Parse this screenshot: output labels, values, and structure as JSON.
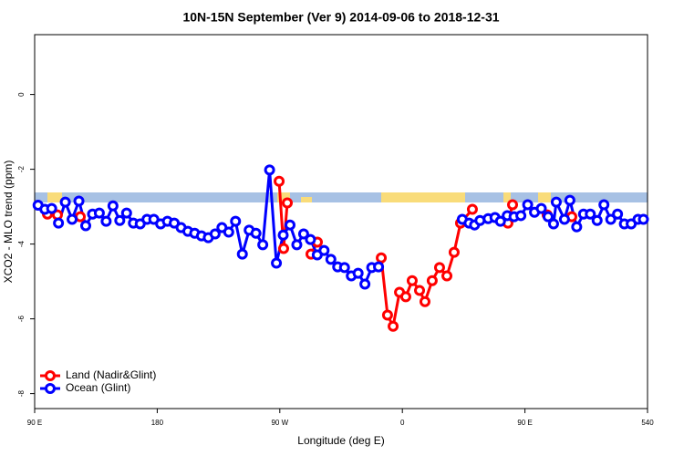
{
  "chart_data": {
    "type": "line",
    "title": "10N-15N September (Ver 9)   2014-09-06 to 2018-12-31",
    "x_label": "Longitude (deg E)",
    "y_label": "XCO2 - MLO trend (ppm)",
    "xlim": [
      90,
      540
    ],
    "ylim": [
      -8.4,
      1.6
    ],
    "xticks": [
      {
        "value": 90,
        "label": "90 E"
      },
      180,
      {
        "value": 270,
        "label": "90 W"
      },
      {
        "value": 360,
        "label": "0"
      },
      {
        "value": 450,
        "label": "90 E"
      },
      540
    ],
    "yticks": [
      0,
      -2,
      -4,
      -6,
      -8
    ],
    "legend": "bottom-left",
    "series": [
      {
        "name": "Land (Nadir&Glint)",
        "color": "#ff0000",
        "x": [
          99.4,
          106.7,
          115,
          123.5,
          200,
          269.5,
          272.8,
          275.5,
          285,
          292.9,
          297.6,
          320,
          344.5,
          349.1,
          353.2,
          357.9,
          362.5,
          367.2,
          372.6,
          376.6,
          381.9,
          387.3,
          392.7,
          398,
          402.7,
          411.4,
          425,
          437.5,
          440.9,
          455,
          466.3,
          470,
          484.4
        ],
        "values": [
          -3.2,
          -3.22,
          null,
          -3.27,
          null,
          -2.32,
          -4.12,
          -2.9,
          null,
          -4.27,
          -3.95,
          null,
          -4.37,
          -5.9,
          -6.2,
          -5.29,
          -5.41,
          -4.98,
          -5.24,
          -5.54,
          -4.98,
          -4.63,
          -4.85,
          -4.22,
          -3.44,
          -3.07,
          null,
          -3.44,
          -2.95,
          null,
          -3.22,
          null,
          -3.27
        ]
      },
      {
        "name": "Ocean (Glint)",
        "color": "#0000ff",
        "x": [
          92.5,
          97.5,
          102.5,
          107.5,
          112.5,
          117.5,
          122.5,
          127.5,
          132.5,
          137.5,
          142.5,
          147.5,
          152.5,
          157.5,
          162.5,
          167.5,
          172.5,
          177.5,
          182.5,
          187.5,
          192.5,
          197.5,
          202.5,
          207.5,
          212.5,
          217.5,
          222.5,
          227.5,
          232.5,
          237.5,
          242.5,
          247.5,
          252.5,
          257.5,
          262.5,
          267.5,
          272.5,
          277.5,
          282.5,
          287.5,
          292.5,
          297.5,
          302.5,
          307.5,
          312.5,
          317.5,
          322.5,
          327.5,
          332.5,
          337.5,
          342.5,
          370,
          404,
          409,
          413,
          417,
          423,
          428,
          432,
          437,
          442,
          447,
          452,
          457,
          462,
          467,
          471,
          473,
          479,
          483,
          488,
          493,
          498,
          503,
          508,
          513,
          518,
          523,
          528,
          533,
          537
        ],
        "values": [
          -2.96,
          -3.07,
          -3.05,
          -3.44,
          -2.88,
          -3.34,
          -2.85,
          -3.51,
          -3.2,
          -3.17,
          -3.39,
          -2.98,
          -3.37,
          -3.17,
          -3.44,
          -3.46,
          -3.34,
          -3.34,
          -3.46,
          -3.39,
          -3.44,
          -3.56,
          -3.66,
          -3.71,
          -3.78,
          -3.83,
          -3.73,
          -3.56,
          -3.68,
          -3.39,
          -4.27,
          -3.63,
          -3.71,
          -4.02,
          -2.02,
          -4.51,
          -3.76,
          -3.49,
          -4.02,
          -3.73,
          -3.88,
          -4.29,
          -4.17,
          -4.41,
          -4.61,
          -4.63,
          -4.85,
          -4.78,
          -5.07,
          -4.63,
          -4.61,
          null,
          -3.34,
          -3.44,
          -3.49,
          -3.37,
          -3.32,
          -3.29,
          -3.39,
          -3.24,
          -3.27,
          -3.24,
          -2.95,
          -3.15,
          -3.05,
          -3.27,
          -3.46,
          -2.88,
          -3.34,
          -2.83,
          -3.54,
          -3.2,
          -3.2,
          -3.37,
          -2.95,
          -3.34,
          -3.2,
          -3.46,
          -3.46,
          -3.34,
          -3.34
        ]
      }
    ]
  }
}
